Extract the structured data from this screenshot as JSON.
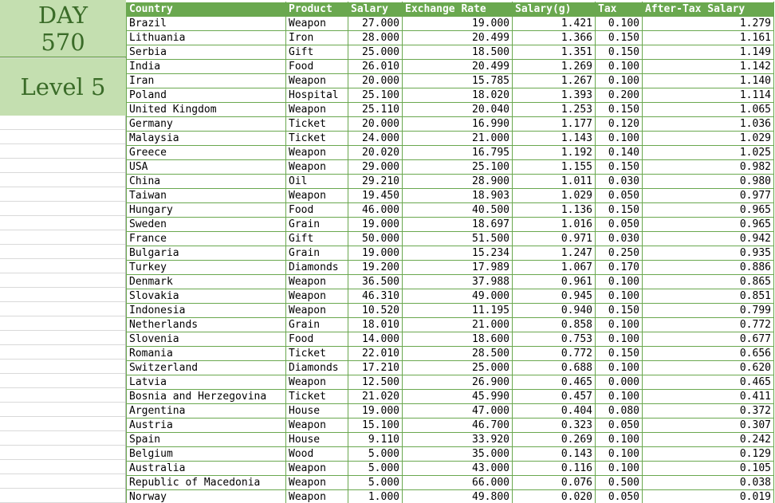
{
  "badge": {
    "day_label": "DAY",
    "day_number": "570",
    "level": "Level 5"
  },
  "colors": {
    "header_bg": "#6aa84f",
    "badge_bg": "#c4dfb0",
    "badge_text": "#3a6b28"
  },
  "table": {
    "headers": [
      "Country",
      "Product",
      "Salary",
      "Exchange Rate",
      "Salary(g)",
      "Tax",
      "After-Tax Salary"
    ],
    "rows": [
      [
        "Brazil",
        "Weapon",
        "27.000",
        "19.000",
        "1.421",
        "0.100",
        "1.279"
      ],
      [
        "Lithuania",
        "Iron",
        "28.000",
        "20.499",
        "1.366",
        "0.150",
        "1.161"
      ],
      [
        "Serbia",
        "Gift",
        "25.000",
        "18.500",
        "1.351",
        "0.150",
        "1.149"
      ],
      [
        "India",
        "Food",
        "26.010",
        "20.499",
        "1.269",
        "0.100",
        "1.142"
      ],
      [
        "Iran",
        "Weapon",
        "20.000",
        "15.785",
        "1.267",
        "0.100",
        "1.140"
      ],
      [
        "Poland",
        "Hospital",
        "25.100",
        "18.020",
        "1.393",
        "0.200",
        "1.114"
      ],
      [
        "United Kingdom",
        "Weapon",
        "25.110",
        "20.040",
        "1.253",
        "0.150",
        "1.065"
      ],
      [
        "Germany",
        "Ticket",
        "20.000",
        "16.990",
        "1.177",
        "0.120",
        "1.036"
      ],
      [
        "Malaysia",
        "Ticket",
        "24.000",
        "21.000",
        "1.143",
        "0.100",
        "1.029"
      ],
      [
        "Greece",
        "Weapon",
        "20.020",
        "16.795",
        "1.192",
        "0.140",
        "1.025"
      ],
      [
        "USA",
        "Weapon",
        "29.000",
        "25.100",
        "1.155",
        "0.150",
        "0.982"
      ],
      [
        "China",
        "Oil",
        "29.210",
        "28.900",
        "1.011",
        "0.030",
        "0.980"
      ],
      [
        "Taiwan",
        "Weapon",
        "19.450",
        "18.903",
        "1.029",
        "0.050",
        "0.977"
      ],
      [
        "Hungary",
        "Food",
        "46.000",
        "40.500",
        "1.136",
        "0.150",
        "0.965"
      ],
      [
        "Sweden",
        "Grain",
        "19.000",
        "18.697",
        "1.016",
        "0.050",
        "0.965"
      ],
      [
        "France",
        "Gift",
        "50.000",
        "51.500",
        "0.971",
        "0.030",
        "0.942"
      ],
      [
        "Bulgaria",
        "Grain",
        "19.000",
        "15.234",
        "1.247",
        "0.250",
        "0.935"
      ],
      [
        "Turkey",
        "Diamonds",
        "19.200",
        "17.989",
        "1.067",
        "0.170",
        "0.886"
      ],
      [
        "Denmark",
        "Weapon",
        "36.500",
        "37.988",
        "0.961",
        "0.100",
        "0.865"
      ],
      [
        "Slovakia",
        "Weapon",
        "46.310",
        "49.000",
        "0.945",
        "0.100",
        "0.851"
      ],
      [
        "Indonesia",
        "Weapon",
        "10.520",
        "11.195",
        "0.940",
        "0.150",
        "0.799"
      ],
      [
        "Netherlands",
        "Grain",
        "18.010",
        "21.000",
        "0.858",
        "0.100",
        "0.772"
      ],
      [
        "Slovenia",
        "Food",
        "14.000",
        "18.600",
        "0.753",
        "0.100",
        "0.677"
      ],
      [
        "Romania",
        "Ticket",
        "22.010",
        "28.500",
        "0.772",
        "0.150",
        "0.656"
      ],
      [
        "Switzerland",
        "Diamonds",
        "17.210",
        "25.000",
        "0.688",
        "0.100",
        "0.620"
      ],
      [
        "Latvia",
        "Weapon",
        "12.500",
        "26.900",
        "0.465",
        "0.000",
        "0.465"
      ],
      [
        "Bosnia and Herzegovina",
        "Ticket",
        "21.020",
        "45.990",
        "0.457",
        "0.100",
        "0.411"
      ],
      [
        "Argentina",
        "House",
        "19.000",
        "47.000",
        "0.404",
        "0.080",
        "0.372"
      ],
      [
        "Austria",
        "Weapon",
        "15.100",
        "46.700",
        "0.323",
        "0.050",
        "0.307"
      ],
      [
        "Spain",
        "House",
        "9.110",
        "33.920",
        "0.269",
        "0.100",
        "0.242"
      ],
      [
        "Belgium",
        "Wood",
        "5.000",
        "35.000",
        "0.143",
        "0.100",
        "0.129"
      ],
      [
        "Australia",
        "Weapon",
        "5.000",
        "43.000",
        "0.116",
        "0.100",
        "0.105"
      ],
      [
        "Republic of Macedonia",
        "Weapon",
        "5.000",
        "66.000",
        "0.076",
        "0.500",
        "0.038"
      ],
      [
        "Norway",
        "Weapon",
        "1.000",
        "49.800",
        "0.020",
        "0.050",
        "0.019"
      ]
    ]
  }
}
